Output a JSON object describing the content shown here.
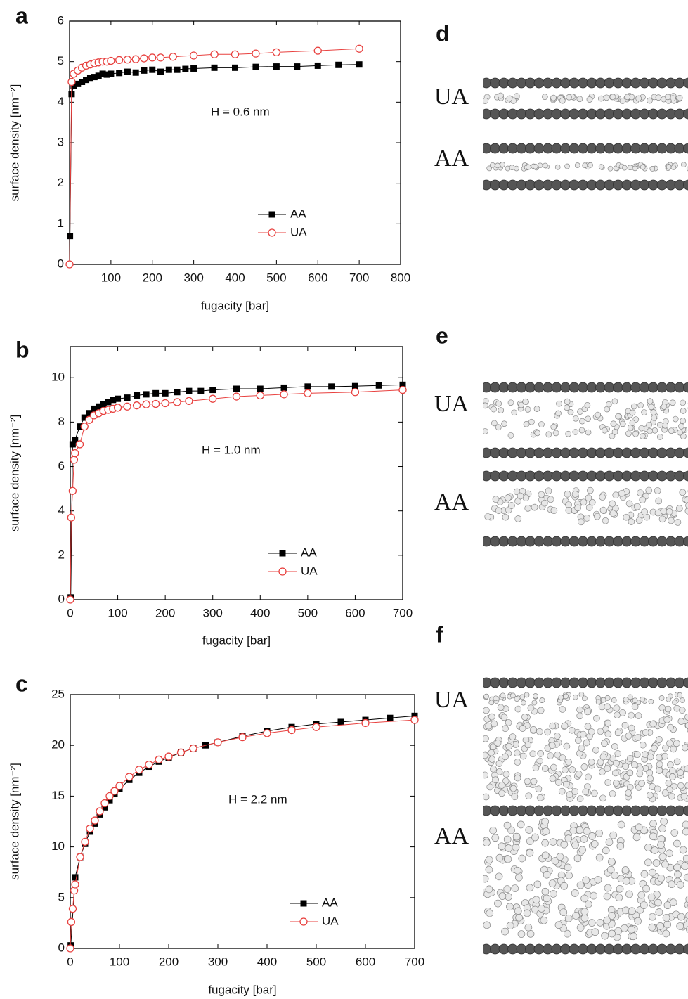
{
  "chart_data": [
    {
      "type": "line",
      "label": "a",
      "annotation": "H = 0.6 nm",
      "xlabel": "fugacity [bar]",
      "ylabel": "surface density [nm⁻²]",
      "xlim": [
        0,
        800
      ],
      "xticks": [
        100,
        200,
        300,
        400,
        500,
        600,
        700,
        800
      ],
      "ylim": [
        0,
        6
      ],
      "yticks": [
        0,
        1,
        2,
        3,
        4,
        5,
        6
      ],
      "series": [
        {
          "name": "AA",
          "color": "#000000",
          "marker": "square",
          "x": [
            1,
            5,
            10,
            20,
            30,
            40,
            50,
            60,
            70,
            80,
            90,
            100,
            120,
            140,
            160,
            180,
            200,
            220,
            240,
            260,
            280,
            300,
            350,
            400,
            450,
            500,
            550,
            600,
            650,
            700
          ],
          "values": [
            0.7,
            4.2,
            4.4,
            4.45,
            4.5,
            4.55,
            4.6,
            4.62,
            4.65,
            4.7,
            4.68,
            4.7,
            4.72,
            4.75,
            4.73,
            4.78,
            4.8,
            4.75,
            4.8,
            4.8,
            4.82,
            4.83,
            4.85,
            4.85,
            4.87,
            4.88,
            4.88,
            4.9,
            4.92,
            4.93
          ]
        },
        {
          "name": "UA",
          "color": "#e8413f",
          "marker": "circle",
          "x": [
            0,
            5,
            10,
            20,
            30,
            40,
            50,
            60,
            70,
            80,
            90,
            100,
            120,
            140,
            160,
            180,
            200,
            220,
            250,
            300,
            350,
            400,
            450,
            500,
            600,
            700
          ],
          "values": [
            0,
            4.5,
            4.7,
            4.78,
            4.85,
            4.9,
            4.93,
            4.96,
            4.98,
            5.0,
            5.0,
            5.02,
            5.04,
            5.05,
            5.06,
            5.08,
            5.1,
            5.1,
            5.12,
            5.15,
            5.18,
            5.18,
            5.2,
            5.23,
            5.27,
            5.32
          ]
        }
      ]
    },
    {
      "type": "line",
      "label": "b",
      "annotation": "H = 1.0 nm",
      "xlabel": "fugacity [bar]",
      "ylabel": "surface density [nm⁻²]",
      "xlim": [
        0,
        700
      ],
      "xticks": [
        0,
        100,
        200,
        300,
        400,
        500,
        600,
        700
      ],
      "ylim": [
        0,
        11.4
      ],
      "yticks": [
        0,
        2,
        4,
        6,
        8,
        10
      ],
      "series": [
        {
          "name": "AA",
          "color": "#000000",
          "marker": "square",
          "x": [
            1,
            5,
            10,
            20,
            30,
            40,
            50,
            60,
            70,
            80,
            90,
            100,
            120,
            140,
            160,
            180,
            200,
            225,
            250,
            275,
            300,
            350,
            400,
            450,
            500,
            550,
            600,
            650,
            700
          ],
          "values": [
            0.1,
            7.0,
            7.2,
            7.8,
            8.2,
            8.4,
            8.6,
            8.7,
            8.8,
            8.9,
            9.0,
            9.05,
            9.1,
            9.2,
            9.25,
            9.3,
            9.3,
            9.35,
            9.4,
            9.4,
            9.45,
            9.5,
            9.5,
            9.55,
            9.6,
            9.6,
            9.62,
            9.65,
            9.68
          ]
        },
        {
          "name": "UA",
          "color": "#e8413f",
          "marker": "circle",
          "x": [
            0,
            2,
            5,
            8,
            10,
            20,
            30,
            40,
            50,
            60,
            70,
            80,
            90,
            100,
            120,
            140,
            160,
            180,
            200,
            225,
            250,
            300,
            350,
            400,
            450,
            500,
            600,
            700
          ],
          "values": [
            0,
            3.7,
            4.9,
            6.3,
            6.6,
            7.0,
            7.8,
            8.1,
            8.3,
            8.4,
            8.5,
            8.55,
            8.6,
            8.65,
            8.7,
            8.75,
            8.8,
            8.82,
            8.85,
            8.9,
            8.95,
            9.05,
            9.15,
            9.2,
            9.25,
            9.3,
            9.35,
            9.45
          ]
        }
      ]
    },
    {
      "type": "line",
      "label": "c",
      "annotation": "H = 2.2 nm",
      "xlabel": "fugacity [bar]",
      "ylabel": "surface density [nm⁻²]",
      "xlim": [
        0,
        700
      ],
      "xticks": [
        0,
        100,
        200,
        300,
        400,
        500,
        600,
        700
      ],
      "ylim": [
        0,
        25
      ],
      "yticks": [
        0,
        5,
        10,
        15,
        20,
        25
      ],
      "series": [
        {
          "name": "AA",
          "color": "#000000",
          "marker": "square",
          "x": [
            1,
            10,
            20,
            30,
            40,
            50,
            60,
            70,
            80,
            90,
            100,
            120,
            140,
            160,
            180,
            200,
            225,
            250,
            275,
            300,
            350,
            400,
            450,
            500,
            550,
            600,
            650,
            700
          ],
          "values": [
            0.3,
            7.0,
            9.0,
            10.3,
            11.5,
            12.3,
            13.2,
            13.9,
            14.6,
            15.2,
            15.7,
            16.6,
            17.3,
            17.9,
            18.4,
            18.8,
            19.3,
            19.7,
            20.0,
            20.3,
            20.9,
            21.4,
            21.8,
            22.1,
            22.3,
            22.5,
            22.7,
            22.9
          ]
        },
        {
          "name": "UA",
          "color": "#e8413f",
          "marker": "circle",
          "x": [
            0,
            2,
            5,
            8,
            10,
            20,
            30,
            40,
            50,
            60,
            70,
            80,
            90,
            100,
            120,
            140,
            160,
            180,
            200,
            225,
            250,
            300,
            350,
            400,
            450,
            500,
            600,
            700
          ],
          "values": [
            0,
            2.6,
            3.9,
            5.7,
            6.3,
            9.0,
            10.5,
            11.8,
            12.6,
            13.5,
            14.3,
            15.0,
            15.5,
            16.0,
            16.9,
            17.6,
            18.1,
            18.6,
            18.9,
            19.3,
            19.7,
            20.3,
            20.8,
            21.2,
            21.5,
            21.8,
            22.2,
            22.5
          ]
        }
      ]
    }
  ],
  "snapshots": [
    {
      "label": "d",
      "rows": [
        "UA",
        "AA"
      ]
    },
    {
      "label": "e",
      "rows": [
        "UA",
        "AA"
      ]
    },
    {
      "label": "f",
      "rows": [
        "UA",
        "AA"
      ]
    }
  ]
}
